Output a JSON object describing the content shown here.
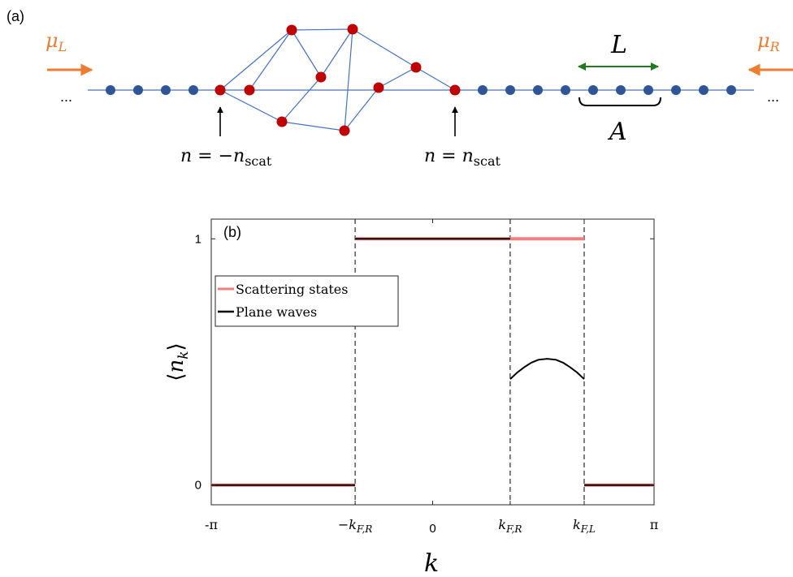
{
  "panel_a": {
    "tag": "(a)",
    "mu_left": "μ",
    "mu_left_sub": "L",
    "mu_right": "μ",
    "mu_right_sub": "R",
    "ellipsis_left": "...",
    "ellipsis_right": "...",
    "length_label": "L",
    "region_label": "A",
    "left_boundary_label": {
      "main": "n = −n",
      "sub": "scat"
    },
    "right_boundary_label": {
      "main": "n = n",
      "sub": "scat"
    },
    "colors": {
      "lead_site": "#2F5597",
      "scatter_site": "#C00000",
      "bond": "#4472C4",
      "reservoir_arrow": "#ED7D31",
      "length_arrow": "#1E7B1E"
    }
  },
  "panel_b": {
    "tag": "(b)",
    "x_axis_label": "k",
    "y_axis_label": "⟨n_k⟩",
    "legend": [
      "Scattering states",
      "Plane waves"
    ]
  },
  "chart_data": {
    "type": "line",
    "xlabel": "k",
    "ylabel": "⟨n_k⟩",
    "xlim": [
      -3.14159,
      3.14159
    ],
    "ylim": [
      -0.08,
      1.08
    ],
    "k_markers": {
      "kFR": 1.1,
      "kFL": 2.15
    },
    "x_ticks": [
      {
        "value": -3.14159,
        "label": "-π"
      },
      {
        "value": -1.1,
        "label": "−k_{F,R}"
      },
      {
        "value": 0,
        "label": "0"
      },
      {
        "value": 1.1,
        "label": "k_{F,R}"
      },
      {
        "value": 2.15,
        "label": "k_{F,L}"
      },
      {
        "value": 3.14159,
        "label": "π"
      }
    ],
    "y_ticks": [
      {
        "value": 0,
        "label": "0"
      },
      {
        "value": 1,
        "label": "1"
      }
    ],
    "legend_position": "upper-left",
    "series": [
      {
        "name": "Scattering states",
        "color": "#F08080",
        "segments": [
          [
            [
              -3.14159,
              0
            ],
            [
              -1.1,
              0
            ]
          ],
          [
            [
              -1.1,
              1
            ],
            [
              2.15,
              1
            ]
          ],
          [
            [
              2.15,
              0
            ],
            [
              3.14159,
              0
            ]
          ]
        ]
      },
      {
        "name": "Plane waves",
        "color": "#000000",
        "segments": [
          [
            [
              -3.14159,
              0
            ],
            [
              -1.1,
              0
            ]
          ],
          [
            [
              -1.1,
              1
            ],
            [
              1.1,
              1
            ]
          ],
          [
            [
              1.1,
              0.43
            ],
            [
              1.2,
              0.457
            ],
            [
              1.3,
              0.479
            ],
            [
              1.4,
              0.497
            ],
            [
              1.5,
              0.509
            ],
            [
              1.625,
              0.513
            ],
            [
              1.75,
              0.509
            ],
            [
              1.85,
              0.497
            ],
            [
              1.95,
              0.479
            ],
            [
              2.05,
              0.457
            ],
            [
              2.15,
              0.43
            ]
          ],
          [
            [
              2.15,
              0
            ],
            [
              3.14159,
              0
            ]
          ]
        ]
      }
    ]
  }
}
